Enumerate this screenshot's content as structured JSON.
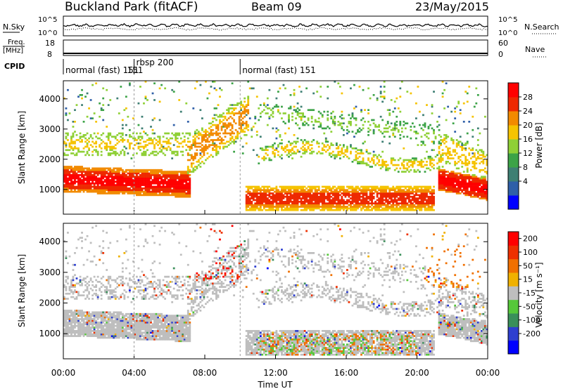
{
  "header": {
    "station": "Buckland Park (fitACF)",
    "beam": "Beam 09",
    "date": "23/May/2015"
  },
  "strip_nsky": {
    "label": "N.Sky",
    "right_label": "N.Search",
    "ticks": [
      "10^5",
      "10^0"
    ]
  },
  "strip_freq": {
    "label_line1": "Freq.",
    "label_line2": "[MHz]",
    "left_ticks": [
      "18",
      "8"
    ],
    "right_ticks": [
      "60",
      "0"
    ],
    "right_label": "Nave"
  },
  "cpid": {
    "label": "CPID",
    "segments": [
      {
        "name": "normal (fast) 151",
        "start_hour": 0,
        "end_hour": 4
      },
      {
        "name": "rbsp 200",
        "start_hour": 4,
        "end_hour": 10
      },
      {
        "name": "normal (fast) 151",
        "start_hour": 10,
        "end_hour": 24
      }
    ],
    "overlap_label": "151"
  },
  "chart_data": [
    {
      "type": "heatmap",
      "name": "power",
      "ylabel": "Slant Range [km]",
      "ylim": [
        180,
        4600
      ],
      "xlim": [
        0,
        24
      ],
      "yticks": [
        1000,
        2000,
        3000,
        4000
      ],
      "colorbar": {
        "label": "Power [dB]",
        "ticks": [
          "28",
          "24",
          "20",
          "16",
          "12",
          "8",
          "4"
        ],
        "range": [
          0,
          32
        ],
        "colors": [
          "#0000ff",
          "#2f5fa8",
          "#3e7f73",
          "#3ca347",
          "#8fd036",
          "#f5c300",
          "#f28a00",
          "#ee2800",
          "#ff0000"
        ]
      }
    },
    {
      "type": "heatmap",
      "name": "velocity",
      "ylabel": "Slant Range [km]",
      "xlabel": "Time UT",
      "ylim": [
        180,
        4600
      ],
      "xlim": [
        0,
        24
      ],
      "yticks": [
        1000,
        2000,
        3000,
        4000
      ],
      "xticks": [
        "00:00",
        "04:00",
        "08:00",
        "12:00",
        "16:00",
        "20:00",
        "00:00"
      ],
      "colorbar": {
        "label": "Velocity [m s⁻¹]",
        "ticks": [
          "200",
          "100",
          "50",
          "15",
          "-15",
          "-50",
          "-100",
          "-200"
        ],
        "colors": [
          "#0000ff",
          "#2e3fd0",
          "#3a8f5a",
          "#56c83a",
          "#bebebe",
          "#f0b100",
          "#f07000",
          "#ee3000",
          "#ff0000"
        ]
      }
    }
  ]
}
